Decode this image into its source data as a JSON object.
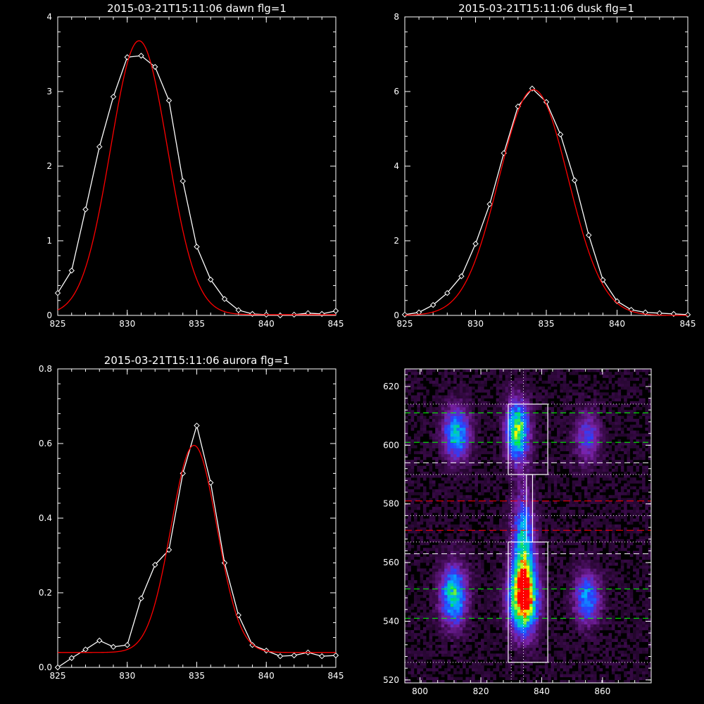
{
  "chart_data": [
    {
      "type": "line",
      "title": "2015-03-21T15:11:06 dawn flg=1",
      "xlim": [
        825,
        845
      ],
      "ylim": [
        0,
        4
      ],
      "xticks": [
        "825",
        "830",
        "835",
        "840",
        "845"
      ],
      "yticks": [
        "0",
        "1",
        "2",
        "3",
        "4"
      ],
      "series": [
        {
          "kind": "observed",
          "color": "#ffffff",
          "marker": "diamond",
          "x": [
            825,
            826,
            827,
            828,
            829,
            830,
            831,
            832,
            833,
            834,
            835,
            836,
            837,
            838,
            839,
            840,
            841,
            842,
            843,
            844,
            845
          ],
          "y": [
            0.3,
            0.6,
            1.42,
            2.26,
            2.93,
            3.46,
            3.48,
            3.33,
            2.88,
            1.8,
            0.92,
            0.48,
            0.22,
            0.07,
            0.02,
            0.01,
            0.0,
            0.01,
            0.03,
            0.02,
            0.06
          ]
        },
        {
          "kind": "fit",
          "color": "#ff0000",
          "gaussian": {
            "amp": 3.67,
            "center": 830.85,
            "sigma": 2.05,
            "offset": 0.01
          }
        }
      ]
    },
    {
      "type": "line",
      "title": "2015-03-21T15:11:06 dusk flg=1",
      "xlim": [
        825,
        845
      ],
      "ylim": [
        0,
        8
      ],
      "xticks": [
        "825",
        "830",
        "835",
        "840",
        "845"
      ],
      "yticks": [
        "0",
        "2",
        "4",
        "6",
        "8"
      ],
      "series": [
        {
          "kind": "observed",
          "color": "#ffffff",
          "marker": "diamond",
          "x": [
            825,
            826,
            827,
            828,
            829,
            830,
            831,
            832,
            833,
            834,
            835,
            836,
            837,
            838,
            839,
            840,
            841,
            842,
            843,
            844,
            845
          ],
          "y": [
            0.02,
            0.08,
            0.28,
            0.6,
            1.05,
            1.92,
            2.98,
            4.35,
            5.6,
            6.08,
            5.72,
            4.85,
            3.62,
            2.15,
            0.95,
            0.38,
            0.15,
            0.08,
            0.06,
            0.04,
            0.02
          ]
        },
        {
          "kind": "fit",
          "color": "#ff0000",
          "gaussian": {
            "amp": 6.05,
            "center": 834.1,
            "sigma": 2.45,
            "offset": 0.0
          }
        }
      ]
    },
    {
      "type": "line",
      "title": "2015-03-21T15:11:06 aurora flg=1",
      "xlim": [
        825,
        845
      ],
      "ylim": [
        0,
        0.8
      ],
      "xticks": [
        "825",
        "830",
        "835",
        "840",
        "845"
      ],
      "yticks": [
        "0.0",
        "0.2",
        "0.4",
        "0.6",
        "0.8"
      ],
      "series": [
        {
          "kind": "observed",
          "color": "#ffffff",
          "marker": "diamond",
          "x": [
            825,
            826,
            827,
            828,
            829,
            830,
            831,
            832,
            833,
            834,
            835,
            836,
            837,
            838,
            839,
            840,
            841,
            842,
            843,
            844,
            845
          ],
          "y": [
            0.0,
            0.025,
            0.048,
            0.072,
            0.055,
            0.06,
            0.185,
            0.275,
            0.315,
            0.52,
            0.648,
            0.495,
            0.28,
            0.14,
            0.06,
            0.045,
            0.03,
            0.032,
            0.04,
            0.03,
            0.032
          ]
        },
        {
          "kind": "fit",
          "color": "#ff0000",
          "gaussian": {
            "amp": 0.555,
            "center": 834.8,
            "sigma": 1.65,
            "offset": 0.04
          }
        }
      ]
    },
    {
      "type": "heatmap",
      "title": "",
      "xlim": [
        795,
        876
      ],
      "ylim": [
        519,
        626
      ],
      "xticks": [
        "800",
        "820",
        "840",
        "860"
      ],
      "yticks": [
        "520",
        "540",
        "560",
        "580",
        "600",
        "620"
      ],
      "colormap": [
        "#000000",
        "#3a0a4a",
        "#7a22a8",
        "#2a40ff",
        "#00b4ff",
        "#00e070",
        "#ffff00",
        "#ff0000"
      ],
      "blobs": [
        {
          "x": 812,
          "y": 604,
          "sx": 3.0,
          "sy": 6.0,
          "amp": 0.55
        },
        {
          "x": 811,
          "y": 549,
          "sx": 3.0,
          "sy": 7.0,
          "amp": 0.6
        },
        {
          "x": 832,
          "y": 605,
          "sx": 2.6,
          "sy": 7.0,
          "amp": 0.72
        },
        {
          "x": 834,
          "y": 548,
          "sx": 3.2,
          "sy": 8.0,
          "amp": 0.98
        },
        {
          "x": 834,
          "y": 566,
          "sx": 2.4,
          "sy": 12.0,
          "amp": 0.55
        },
        {
          "x": 855,
          "y": 603,
          "sx": 3.0,
          "sy": 6.0,
          "amp": 0.3
        },
        {
          "x": 855,
          "y": 548,
          "sx": 3.0,
          "sy": 6.0,
          "amp": 0.45
        }
      ],
      "lines": {
        "green_dashed_y": [
          611,
          601,
          551,
          541
        ],
        "white_dashed_y": [
          594,
          563
        ],
        "red_dashed_y": [
          581,
          571
        ],
        "white_dotted_y": [
          614,
          590,
          567,
          526,
          576
        ],
        "white_dotted_x": [
          830,
          834
        ]
      },
      "boxes": [
        {
          "x0": 829,
          "x1": 842,
          "y0": 590,
          "y1": 614
        },
        {
          "x0": 829,
          "x1": 842,
          "y0": 526,
          "y1": 567
        },
        {
          "x0": 835,
          "x1": 837,
          "y0": 567,
          "y1": 590
        }
      ]
    }
  ]
}
